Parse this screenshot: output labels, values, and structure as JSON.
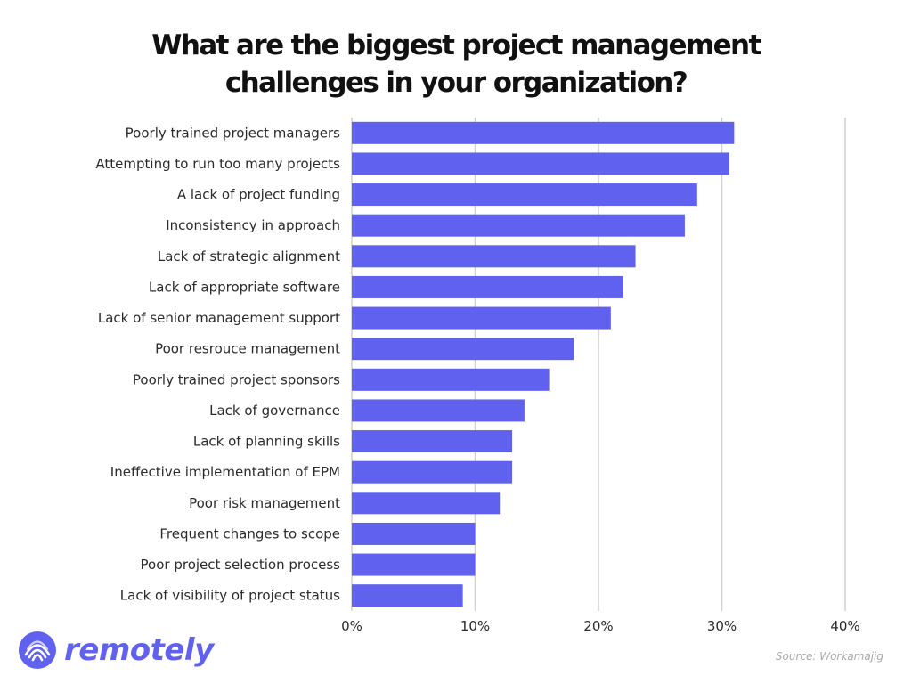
{
  "brand": {
    "logo_icon": "fingerprint-circle-icon",
    "logo_text": "remotely",
    "accent_color": "#6161f0"
  },
  "source_text": "Source: Workamajig",
  "chart_data": {
    "type": "bar",
    "orientation": "horizontal",
    "title_lines": [
      "What are the biggest project management",
      "challenges in your organization?"
    ],
    "categories": [
      "Poorly trained project managers",
      "Attempting to run too many projects",
      "A lack of project funding",
      "Inconsistency in approach",
      "Lack of strategic alignment",
      "Lack of appropriate software",
      "Lack of senior management support",
      "Poor resrouce management",
      "Poorly trained project sponsors",
      "Lack of governance",
      "Lack of planning skills",
      "Ineffective implementation of EPM",
      "Poor risk management",
      "Frequent changes to scope",
      "Poor project selection process",
      "Lack of visibility of project status"
    ],
    "values": [
      31,
      30.6,
      28,
      27,
      23,
      22,
      21,
      18,
      16,
      14,
      13,
      13,
      12,
      10,
      10,
      9
    ],
    "value_unit": "%",
    "xlim": [
      0,
      40
    ],
    "x_ticks": [
      0,
      10,
      20,
      30,
      40
    ],
    "x_tick_labels": [
      "0%",
      "10%",
      "20%",
      "30%",
      "40%"
    ],
    "grid": "vertical",
    "bar_color": "#6161f0",
    "grid_color": "#cfcfcf"
  }
}
